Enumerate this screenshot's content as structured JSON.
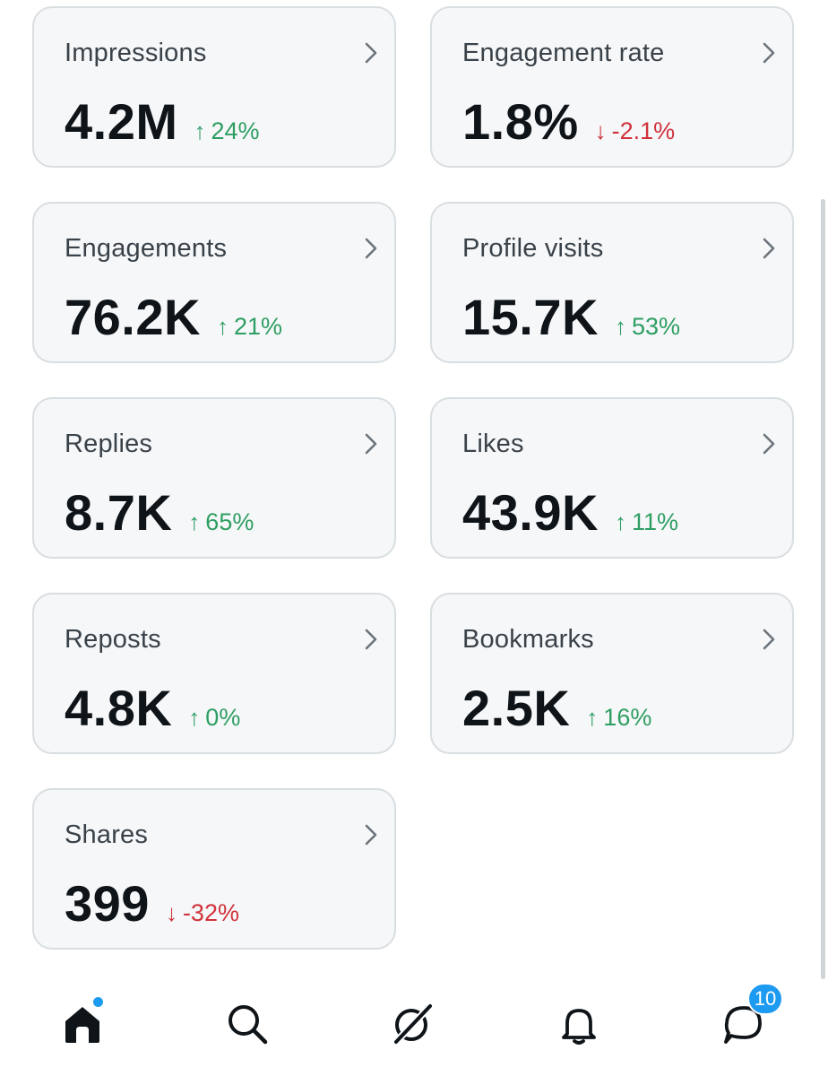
{
  "metrics": [
    {
      "label": "Impressions",
      "value": "4.2M",
      "arrow": "↑",
      "change": "24%",
      "trend": "up"
    },
    {
      "label": "Engagement rate",
      "value": "1.8%",
      "arrow": "↓",
      "change": "-2.1%",
      "trend": "down"
    },
    {
      "label": "Engagements",
      "value": "76.2K",
      "arrow": "↑",
      "change": "21%",
      "trend": "up"
    },
    {
      "label": "Profile visits",
      "value": "15.7K",
      "arrow": "↑",
      "change": "53%",
      "trend": "up"
    },
    {
      "label": "Replies",
      "value": "8.7K",
      "arrow": "↑",
      "change": "65%",
      "trend": "up"
    },
    {
      "label": "Likes",
      "value": "43.9K",
      "arrow": "↑",
      "change": "11%",
      "trend": "up"
    },
    {
      "label": "Reposts",
      "value": "4.8K",
      "arrow": "↑",
      "change": "0%",
      "trend": "up"
    },
    {
      "label": "Bookmarks",
      "value": "2.5K",
      "arrow": "↑",
      "change": "16%",
      "trend": "up"
    },
    {
      "label": "Shares",
      "value": "399",
      "arrow": "↓",
      "change": "-32%",
      "trend": "down"
    }
  ],
  "colors": {
    "up": "#2f9e63",
    "down": "#d1323c",
    "accent": "#1d9bf0",
    "card_bg": "#f5f7f8",
    "card_border": "#d9dee1"
  },
  "tabbar": {
    "items": [
      {
        "name": "home",
        "icon": "home-icon",
        "has_dot": true
      },
      {
        "name": "search",
        "icon": "search-icon"
      },
      {
        "name": "grok",
        "icon": "grok-icon"
      },
      {
        "name": "notifications",
        "icon": "bell-icon"
      },
      {
        "name": "messages",
        "icon": "chat-bubble-icon",
        "badge": "10"
      }
    ]
  }
}
